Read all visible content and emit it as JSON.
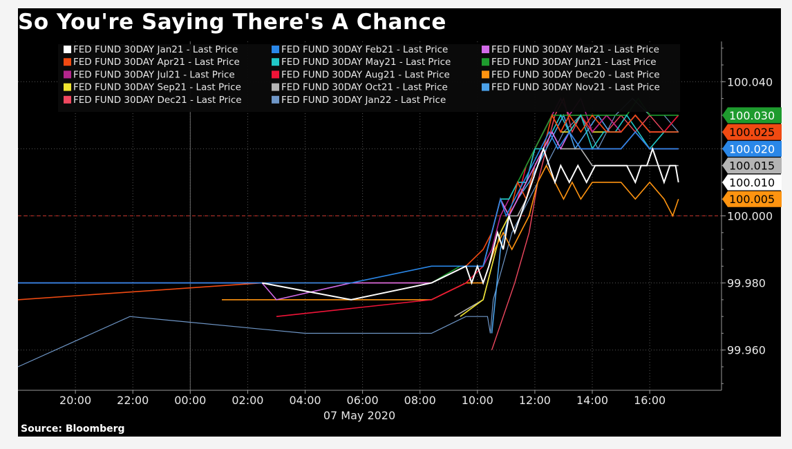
{
  "title": "So You're Saying There's A Chance",
  "source": "Source: Bloomberg",
  "chart_data": {
    "type": "line",
    "title": "So You're Saying There's A Chance",
    "xlabel": "07 May 2020",
    "ylabel": "",
    "x_unit": "hour of day (7 May 2020; negative = 6 May)",
    "xlim": [
      -6,
      18.5
    ],
    "ylim": [
      99.948,
      100.052
    ],
    "x_ticks": [
      {
        "x": -4,
        "label": "20:00"
      },
      {
        "x": -2,
        "label": "22:00"
      },
      {
        "x": 0,
        "label": "00:00"
      },
      {
        "x": 2,
        "label": "02:00"
      },
      {
        "x": 4,
        "label": "04:00"
      },
      {
        "x": 6,
        "label": "06:00"
      },
      {
        "x": 8,
        "label": "08:00"
      },
      {
        "x": 10,
        "label": "10:00"
      },
      {
        "x": 12,
        "label": "12:00"
      },
      {
        "x": 14,
        "label": "14:00"
      },
      {
        "x": 16,
        "label": "16:00"
      }
    ],
    "y_ticks": [
      {
        "y": 100.04,
        "label": "100.040"
      },
      {
        "y": 100.02,
        "label": "100.020"
      },
      {
        "y": 100.0,
        "label": "100.000"
      },
      {
        "y": 99.98,
        "label": "99.980"
      },
      {
        "y": 99.96,
        "label": "99.960"
      }
    ],
    "reference_line": {
      "y": 100.0,
      "color": "#c8342a",
      "style": "dashed"
    },
    "grid": "dotted",
    "legend_position": "top",
    "badges": [
      {
        "value": 100.03,
        "label": "100.030",
        "bg": "#1e9b2e",
        "fg": "#ffffff"
      },
      {
        "value": 100.025,
        "label": "100.025",
        "bg": "#f04a12",
        "fg": "#000000"
      },
      {
        "value": 100.02,
        "label": "100.020",
        "bg": "#2a87e8",
        "fg": "#ffffff"
      },
      {
        "value": 100.015,
        "label": "100.015",
        "bg": "#b4b4b4",
        "fg": "#000000"
      },
      {
        "value": 100.01,
        "label": "100.010",
        "bg": "#ffffff",
        "fg": "#000000"
      },
      {
        "value": 100.005,
        "label": "100.005",
        "bg": "#ff9410",
        "fg": "#000000"
      }
    ],
    "series": [
      {
        "name": "FED FUND 30DAY Jan21 - Last Price",
        "color": "#ffffff",
        "width": 2,
        "x": [
          2.5,
          5.6,
          8.4,
          9.6,
          9.8,
          10.0,
          10.2,
          10.4,
          10.55,
          10.7,
          10.9,
          11.1,
          11.3,
          11.5,
          11.7,
          11.9,
          12.1,
          12.3,
          12.5,
          12.7,
          12.9,
          13.2,
          13.5,
          13.8,
          14.1,
          14.4,
          14.8,
          15.2,
          15.5,
          15.7,
          15.9,
          16.1,
          16.3,
          16.5,
          16.7,
          16.9,
          17.0
        ],
        "y": [
          99.98,
          99.975,
          99.98,
          99.985,
          99.98,
          99.985,
          99.98,
          99.985,
          99.99,
          99.995,
          99.99,
          100.0,
          99.995,
          100.0,
          100.005,
          100.01,
          100.015,
          100.02,
          100.015,
          100.01,
          100.015,
          100.01,
          100.015,
          100.01,
          100.015,
          100.015,
          100.015,
          100.015,
          100.01,
          100.015,
          100.015,
          100.02,
          100.015,
          100.01,
          100.015,
          100.015,
          100.01
        ]
      },
      {
        "name": "FED FUND 30DAY Feb21 - Last Price",
        "color": "#2a87e8",
        "width": 1.6,
        "x": [
          -6,
          5.6,
          8.4,
          9.6,
          10.2,
          10.5,
          10.8,
          11.0,
          11.3,
          11.6,
          11.9,
          12.2,
          12.5,
          12.8,
          13.2,
          13.6,
          14.0,
          14.5,
          15.0,
          15.5,
          16.0,
          16.5,
          17.0
        ],
        "y": [
          99.98,
          99.98,
          99.985,
          99.985,
          99.985,
          99.995,
          100.005,
          100.0,
          100.005,
          100.01,
          100.015,
          100.02,
          100.025,
          100.02,
          100.025,
          100.02,
          100.02,
          100.02,
          100.02,
          100.025,
          100.02,
          100.02,
          100.02
        ]
      },
      {
        "name": "FED FUND 30DAY Mar21 - Last Price",
        "color": "#d26ae8",
        "width": 1.6,
        "x": [
          -6,
          2.5,
          3.0,
          5.6,
          8.4,
          9.6,
          10.2,
          10.5,
          10.8,
          11.1,
          11.4,
          11.7,
          12.0,
          12.3,
          12.6,
          12.9,
          13.2,
          13.6,
          14.0,
          14.5,
          15.0,
          15.5,
          16.0,
          16.5,
          17.0
        ],
        "y": [
          99.98,
          99.98,
          99.975,
          99.98,
          99.98,
          99.985,
          99.985,
          99.995,
          100.005,
          100.0,
          100.005,
          100.01,
          100.015,
          100.02,
          100.025,
          100.02,
          100.025,
          100.02,
          100.02,
          100.02,
          100.02,
          100.025,
          100.02,
          100.02,
          100.02
        ]
      },
      {
        "name": "FED FUND 30DAY Apr21 - Last Price",
        "color": "#f04a12",
        "width": 1.6,
        "x": [
          -6,
          2.5,
          5.6,
          8.4,
          9.6,
          10.2,
          10.5,
          10.8,
          11.1,
          11.4,
          11.7,
          12.0,
          12.3,
          12.6,
          12.9,
          13.2,
          13.6,
          14.0,
          14.5,
          15.0,
          15.5,
          16.0,
          16.5,
          17.0
        ],
        "y": [
          99.975,
          99.98,
          99.98,
          99.98,
          99.985,
          99.99,
          99.995,
          100.005,
          100.0,
          100.01,
          100.005,
          100.015,
          100.02,
          100.03,
          100.025,
          100.03,
          100.025,
          100.03,
          100.025,
          100.025,
          100.03,
          100.025,
          100.025,
          100.025
        ]
      },
      {
        "name": "FED FUND 30DAY May21 - Last Price",
        "color": "#20c8c8",
        "width": 1.6,
        "x": [
          8.4,
          9.6,
          10.2,
          10.5,
          10.8,
          11.1,
          11.4,
          11.7,
          12.0,
          12.3,
          12.6,
          12.9,
          13.2,
          13.6,
          14.0,
          14.4,
          14.8,
          15.2,
          15.6,
          16.0,
          16.5,
          17.0
        ],
        "y": [
          99.98,
          99.985,
          99.985,
          99.995,
          100.005,
          100.005,
          100.01,
          100.01,
          100.02,
          100.02,
          100.025,
          100.03,
          100.025,
          100.03,
          100.02,
          100.025,
          100.025,
          100.03,
          100.025,
          100.02,
          100.025,
          100.025
        ]
      },
      {
        "name": "FED FUND 30DAY Jun21 - Last Price",
        "color": "#1e9b2e",
        "width": 1.6,
        "x": [
          8.4,
          9.4,
          10.2,
          10.5,
          10.8,
          11.1,
          11.4,
          11.7,
          12.0,
          12.3,
          12.6,
          12.9,
          13.2,
          13.6,
          14.0,
          14.4,
          14.8,
          15.2,
          15.6,
          16.0,
          16.5,
          17.0
        ],
        "y": [
          99.98,
          99.985,
          99.985,
          99.995,
          100.005,
          100.005,
          100.01,
          100.015,
          100.02,
          100.025,
          100.03,
          100.03,
          100.03,
          100.03,
          100.03,
          100.03,
          100.03,
          100.03,
          100.035,
          100.03,
          100.03,
          100.03
        ]
      },
      {
        "name": "FED FUND 30DAY Jul21 - Last Price",
        "color": "#b4268c",
        "width": 1.6,
        "x": [
          8.4,
          9.6,
          10.2,
          10.5,
          10.8,
          11.1,
          11.4,
          11.7,
          12.0,
          12.3,
          12.6,
          12.9,
          13.2,
          13.6,
          14.0,
          14.5,
          15.0,
          15.5,
          16.0,
          16.5,
          17.0
        ],
        "y": [
          99.98,
          99.985,
          99.985,
          99.99,
          100.0,
          100.005,
          100.01,
          100.01,
          100.02,
          100.025,
          100.03,
          100.035,
          100.03,
          100.035,
          100.025,
          100.03,
          100.025,
          100.03,
          100.025,
          100.025,
          100.025
        ]
      },
      {
        "name": "FED FUND 30DAY Aug21 - Last Price",
        "color": "#f01438",
        "width": 1.6,
        "x": [
          3.0,
          8.4,
          9.6,
          10.2,
          10.5,
          10.8,
          11.1,
          11.4,
          11.7,
          12.0,
          12.3,
          12.6,
          12.9,
          13.2,
          13.6,
          14.0,
          14.5,
          15.0,
          15.5,
          16.0,
          16.5,
          17.0
        ],
        "y": [
          99.97,
          99.975,
          99.98,
          99.985,
          99.995,
          100.005,
          100.0,
          100.005,
          100.015,
          100.02,
          100.025,
          100.03,
          100.025,
          100.03,
          100.03,
          100.025,
          100.03,
          100.025,
          100.03,
          100.025,
          100.025,
          100.03
        ]
      },
      {
        "name": "FED FUND 30DAY Dec20 - Last Price",
        "color": "#ff9410",
        "width": 1.6,
        "x": [
          1.1,
          5.6,
          8.4,
          9.6,
          10.2,
          10.6,
          10.9,
          11.2,
          11.5,
          11.8,
          12.1,
          12.4,
          12.7,
          13.0,
          13.3,
          13.6,
          14.0,
          14.5,
          15.0,
          15.5,
          16.0,
          16.5,
          16.8,
          17.0
        ],
        "y": [
          99.975,
          99.975,
          99.975,
          99.98,
          99.98,
          99.99,
          99.995,
          99.99,
          99.995,
          100.0,
          100.01,
          100.015,
          100.01,
          100.005,
          100.01,
          100.005,
          100.01,
          100.01,
          100.01,
          100.005,
          100.01,
          100.005,
          100.0,
          100.005
        ]
      },
      {
        "name": "FED FUND 30DAY Sep21 - Last Price",
        "color": "#f0e430",
        "width": 1.6,
        "x": [
          9.4,
          10.2,
          10.5,
          10.8,
          11.1,
          11.4,
          11.7,
          12.0,
          12.3,
          12.6,
          12.9,
          13.2,
          13.6,
          14.0,
          14.5,
          15.0,
          15.5,
          16.0,
          16.5,
          17.0
        ],
        "y": [
          99.97,
          99.975,
          99.985,
          99.995,
          100.0,
          100.005,
          100.01,
          100.02,
          100.025,
          100.03,
          100.025,
          100.025,
          100.03,
          100.025,
          100.025,
          100.025,
          100.03,
          100.025,
          100.025,
          100.025
        ]
      },
      {
        "name": "FED FUND 30DAY Oct21 - Last Price",
        "color": "#b4b4b4",
        "width": 1.6,
        "x": [
          9.2,
          10.2,
          10.5,
          10.8,
          11.1,
          11.4,
          11.7,
          12.0,
          12.3,
          12.6,
          12.9,
          13.2,
          13.6,
          14.0,
          14.5,
          15.0,
          15.5,
          16.0,
          16.5,
          17.0
        ],
        "y": [
          99.97,
          99.975,
          99.985,
          99.995,
          100.0,
          100.0,
          100.005,
          100.015,
          100.02,
          100.025,
          100.02,
          100.02,
          100.02,
          100.015,
          100.015,
          100.015,
          100.015,
          100.015,
          100.015,
          100.015
        ]
      },
      {
        "name": "FED FUND 30DAY Nov21 - Last Price",
        "color": "#4aa0e8",
        "width": 1.6,
        "x": [
          10.5,
          10.8,
          11.1,
          11.4,
          11.8,
          12.1,
          12.4,
          12.7,
          13.0,
          13.4,
          13.8,
          14.2,
          14.6,
          15.0,
          15.5,
          16.0,
          16.5,
          17.0
        ],
        "y": [
          99.965,
          99.99,
          100.0,
          100.005,
          100.01,
          100.015,
          100.02,
          100.025,
          100.03,
          100.02,
          100.025,
          100.03,
          100.025,
          100.025,
          100.03,
          100.025,
          100.025,
          100.025
        ]
      },
      {
        "name": "FED FUND 30DAY Dec21 - Last Price",
        "color": "#f04860",
        "width": 1.4,
        "x": [
          10.5,
          11.3,
          11.8,
          12.1,
          12.4,
          12.7,
          13.0,
          13.3,
          13.6,
          14.0,
          14.5,
          15.0,
          15.5,
          16.0,
          16.5,
          17.0
        ],
        "y": [
          99.96,
          99.98,
          99.995,
          100.01,
          100.02,
          100.03,
          100.035,
          100.025,
          100.03,
          100.03,
          100.025,
          100.03,
          100.025,
          100.03,
          100.025,
          100.03
        ]
      },
      {
        "name": "FED FUND 30DAY Jan22 - Last Price",
        "color": "#6f97c8",
        "width": 1.2,
        "x": [
          -6,
          -2.1,
          4.0,
          8.4,
          9.6,
          10.35,
          10.45,
          10.55,
          11.2,
          11.8,
          12.4,
          13.0,
          13.6,
          14.2,
          14.8,
          15.4,
          16.0,
          16.5,
          17.0
        ],
        "y": [
          99.955,
          99.97,
          99.965,
          99.965,
          99.97,
          99.97,
          99.965,
          99.975,
          99.995,
          100.005,
          100.015,
          100.025,
          100.03,
          100.02,
          100.03,
          100.035,
          100.03,
          100.03,
          100.025
        ]
      }
    ]
  }
}
